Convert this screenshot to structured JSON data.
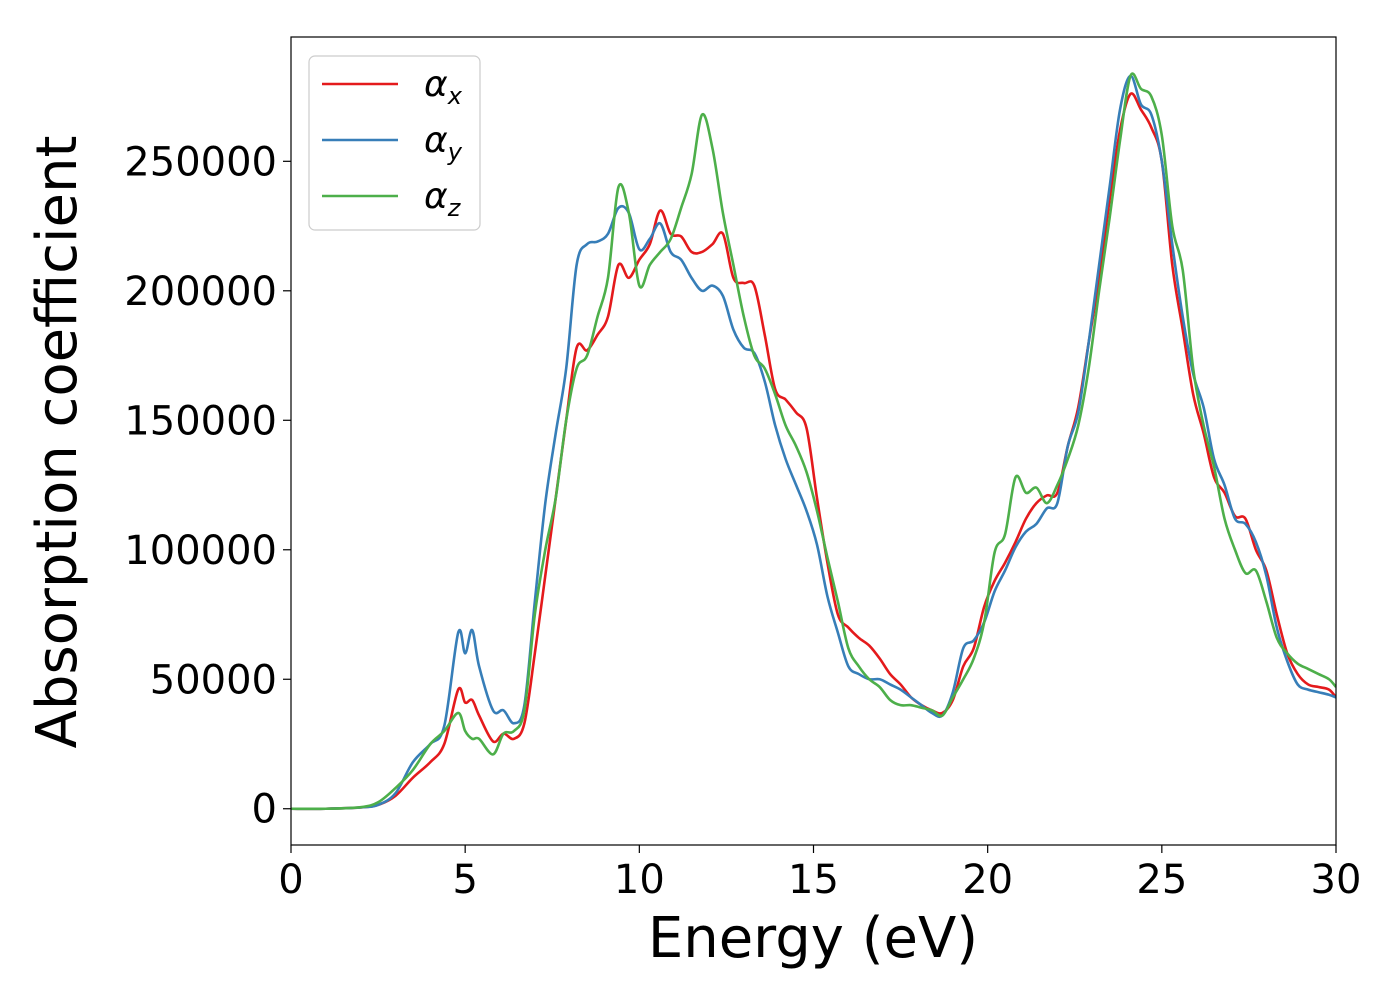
{
  "chart_data": {
    "type": "line",
    "title": "",
    "xlabel": "Energy (eV)",
    "ylabel": "Absorption coefficient",
    "xlim": [
      0,
      30
    ],
    "ylim": [
      -14000,
      298000
    ],
    "xticks": [
      0,
      5,
      10,
      15,
      20,
      25,
      30
    ],
    "yticks": [
      0,
      50000,
      100000,
      150000,
      200000,
      250000
    ],
    "xtick_labels": [
      "0",
      "5",
      "10",
      "15",
      "20",
      "25",
      "30"
    ],
    "ytick_labels": [
      "0",
      "50000",
      "100000",
      "150000",
      "200000",
      "250000"
    ],
    "legend_position": "upper-left",
    "grid": false,
    "series": [
      {
        "name": "αx",
        "label_base": "α",
        "label_sub": "x",
        "color": "#e41a1c",
        "x": [
          0,
          1,
          2,
          2.5,
          3,
          3.5,
          4,
          4.4,
          4.8,
          5.0,
          5.2,
          5.4,
          5.8,
          6.1,
          6.4,
          6.7,
          7.0,
          7.3,
          7.6,
          7.9,
          8.2,
          8.5,
          8.8,
          9.1,
          9.4,
          9.7,
          10.0,
          10.3,
          10.6,
          10.9,
          11.2,
          11.5,
          11.8,
          12.1,
          12.4,
          12.7,
          13.0,
          13.3,
          13.6,
          13.9,
          14.2,
          14.5,
          14.8,
          15.1,
          15.4,
          15.7,
          16.0,
          16.3,
          16.6,
          16.9,
          17.2,
          17.5,
          17.8,
          18.1,
          18.4,
          18.7,
          19.0,
          19.3,
          19.6,
          19.9,
          20.2,
          20.5,
          20.8,
          21.1,
          21.4,
          21.7,
          22.0,
          22.3,
          22.6,
          22.9,
          23.2,
          23.5,
          23.8,
          24.1,
          24.4,
          24.7,
          25.0,
          25.3,
          25.6,
          25.9,
          26.2,
          26.5,
          26.8,
          27.1,
          27.4,
          27.7,
          28.0,
          28.3,
          28.6,
          28.9,
          29.2,
          29.5,
          29.8,
          30.0
        ],
        "y": [
          0,
          0,
          500,
          1500,
          5000,
          12000,
          18000,
          25000,
          46000,
          41000,
          42000,
          36000,
          26000,
          29000,
          27000,
          33000,
          60000,
          90000,
          120000,
          150000,
          178000,
          177000,
          183000,
          190000,
          210000,
          205000,
          212000,
          218000,
          231000,
          222000,
          221000,
          215000,
          215000,
          218000,
          222000,
          205000,
          203000,
          202000,
          183000,
          162000,
          158000,
          153000,
          147000,
          120000,
          95000,
          75000,
          70000,
          66000,
          63000,
          58000,
          52000,
          48000,
          43000,
          40000,
          38000,
          37000,
          42000,
          55000,
          62000,
          78000,
          88000,
          95000,
          103000,
          112000,
          118000,
          121000,
          122000,
          140000,
          155000,
          180000,
          205000,
          235000,
          262000,
          276000,
          270000,
          263000,
          250000,
          210000,
          185000,
          160000,
          145000,
          128000,
          122000,
          113000,
          112000,
          100000,
          92000,
          75000,
          60000,
          52000,
          48000,
          47000,
          46000,
          43000
        ]
      },
      {
        "name": "αy",
        "label_base": "α",
        "label_sub": "y",
        "color": "#377eb8",
        "x": [
          0,
          1,
          2,
          2.5,
          3,
          3.5,
          4,
          4.4,
          4.8,
          5.0,
          5.2,
          5.4,
          5.8,
          6.1,
          6.4,
          6.7,
          7.0,
          7.3,
          7.6,
          7.9,
          8.2,
          8.5,
          8.8,
          9.1,
          9.4,
          9.7,
          10.0,
          10.3,
          10.6,
          10.9,
          11.2,
          11.5,
          11.8,
          12.1,
          12.4,
          12.7,
          13.0,
          13.3,
          13.6,
          13.9,
          14.2,
          14.5,
          14.8,
          15.1,
          15.4,
          15.7,
          16.0,
          16.3,
          16.6,
          16.9,
          17.2,
          17.5,
          17.8,
          18.1,
          18.4,
          18.7,
          19.0,
          19.3,
          19.6,
          19.9,
          20.2,
          20.5,
          20.8,
          21.1,
          21.4,
          21.7,
          22.0,
          22.3,
          22.6,
          22.9,
          23.2,
          23.5,
          23.8,
          24.1,
          24.4,
          24.7,
          25.0,
          25.3,
          25.6,
          25.9,
          26.2,
          26.5,
          26.8,
          27.1,
          27.4,
          27.7,
          28.0,
          28.3,
          28.6,
          28.9,
          29.2,
          29.5,
          29.8,
          30.0
        ],
        "y": [
          0,
          0,
          500,
          1500,
          6000,
          18000,
          25000,
          32000,
          68000,
          60000,
          69000,
          55000,
          38000,
          38000,
          33000,
          40000,
          80000,
          118000,
          145000,
          170000,
          210000,
          218000,
          219000,
          222000,
          232000,
          230000,
          216000,
          220000,
          226000,
          215000,
          212000,
          205000,
          200000,
          202000,
          198000,
          185000,
          178000,
          176000,
          165000,
          148000,
          135000,
          125000,
          115000,
          102000,
          82000,
          68000,
          55000,
          52000,
          50000,
          50000,
          48000,
          46000,
          43000,
          40000,
          37000,
          36000,
          45000,
          62000,
          65000,
          72000,
          84000,
          92000,
          101000,
          107000,
          110000,
          116000,
          118000,
          140000,
          153000,
          180000,
          210000,
          240000,
          270000,
          283000,
          272000,
          268000,
          250000,
          218000,
          190000,
          168000,
          155000,
          135000,
          125000,
          112000,
          110000,
          103000,
          90000,
          70000,
          57000,
          48000,
          46000,
          45000,
          44000,
          43000
        ]
      },
      {
        "name": "αz",
        "label_base": "α",
        "label_sub": "z",
        "color": "#4daf4a",
        "x": [
          0,
          1,
          2,
          2.5,
          3,
          3.5,
          4,
          4.4,
          4.8,
          5.0,
          5.2,
          5.4,
          5.8,
          6.1,
          6.4,
          6.7,
          7.0,
          7.3,
          7.6,
          7.9,
          8.2,
          8.5,
          8.8,
          9.1,
          9.4,
          9.7,
          10.0,
          10.3,
          10.6,
          10.9,
          11.2,
          11.5,
          11.8,
          12.1,
          12.4,
          12.7,
          13.0,
          13.3,
          13.6,
          13.9,
          14.2,
          14.5,
          14.8,
          15.1,
          15.4,
          15.7,
          16.0,
          16.3,
          16.6,
          16.9,
          17.2,
          17.5,
          17.8,
          18.1,
          18.4,
          18.7,
          19.0,
          19.3,
          19.6,
          19.9,
          20.2,
          20.5,
          20.8,
          21.1,
          21.4,
          21.7,
          22.0,
          22.3,
          22.6,
          22.9,
          23.2,
          23.5,
          23.8,
          24.1,
          24.4,
          24.7,
          25.0,
          25.3,
          25.6,
          25.9,
          26.2,
          26.5,
          26.8,
          27.1,
          27.4,
          27.7,
          28.0,
          28.3,
          28.6,
          28.9,
          29.2,
          29.5,
          29.8,
          30.0
        ],
        "y": [
          0,
          0,
          600,
          2500,
          8000,
          15000,
          25000,
          30000,
          37000,
          30000,
          27000,
          27000,
          21000,
          29000,
          30000,
          38000,
          75000,
          100000,
          120000,
          150000,
          170000,
          175000,
          190000,
          205000,
          240000,
          230000,
          202000,
          210000,
          215000,
          220000,
          232000,
          245000,
          268000,
          255000,
          230000,
          210000,
          190000,
          175000,
          170000,
          160000,
          148000,
          140000,
          130000,
          115000,
          97000,
          80000,
          62000,
          55000,
          50000,
          47000,
          42000,
          40000,
          40000,
          39000,
          38000,
          36000,
          43000,
          50000,
          58000,
          72000,
          99000,
          106000,
          128000,
          122000,
          124000,
          118000,
          125000,
          135000,
          148000,
          170000,
          200000,
          228000,
          258000,
          283000,
          278000,
          275000,
          260000,
          225000,
          208000,
          170000,
          148000,
          132000,
          112000,
          100000,
          91000,
          92000,
          80000,
          66000,
          60000,
          56000,
          54000,
          52000,
          50000,
          47000
        ]
      }
    ]
  }
}
